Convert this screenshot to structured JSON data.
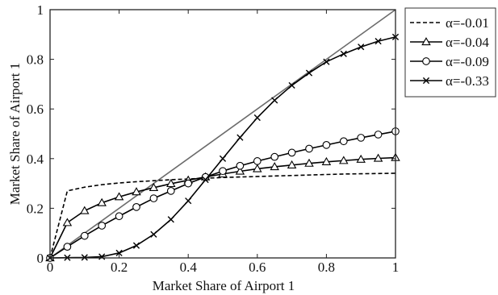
{
  "chart_data": {
    "type": "line",
    "title": "",
    "xlabel": "Market Share of Airport 1",
    "ylabel": "Market Share of Airport 1",
    "xlim": [
      0,
      1
    ],
    "ylim": [
      0,
      1
    ],
    "xticks": [
      "0",
      "0.2",
      "0.4",
      "0.6",
      "0.8",
      "1"
    ],
    "yticks": [
      "0",
      "0.2",
      "0.4",
      "0.6",
      "0.8",
      "1"
    ],
    "grid": false,
    "legend_position": "outside-top-right",
    "x": [
      0,
      0.05,
      0.1,
      0.15,
      0.2,
      0.25,
      0.3,
      0.35,
      0.4,
      0.45,
      0.5,
      0.55,
      0.6,
      0.65,
      0.7,
      0.75,
      0.8,
      0.85,
      0.9,
      0.95,
      1.0
    ],
    "reference_line": {
      "x": [
        0,
        1
      ],
      "y": [
        0,
        1
      ],
      "color": "#6b6b6b"
    },
    "series": [
      {
        "name": "α=-0.01",
        "marker": "none",
        "dash": "dashed",
        "color": "#000000",
        "values": [
          0,
          0.27,
          0.285,
          0.295,
          0.302,
          0.307,
          0.311,
          0.315,
          0.318,
          0.321,
          0.324,
          0.326,
          0.328,
          0.33,
          0.332,
          0.334,
          0.336,
          0.338,
          0.339,
          0.34,
          0.341
        ]
      },
      {
        "name": "α=-0.04",
        "marker": "triangle",
        "dash": "solid",
        "color": "#000000",
        "values": [
          0,
          0.142,
          0.19,
          0.222,
          0.246,
          0.266,
          0.283,
          0.299,
          0.313,
          0.326,
          0.338,
          0.349,
          0.359,
          0.367,
          0.374,
          0.381,
          0.387,
          0.392,
          0.397,
          0.401,
          0.404
        ]
      },
      {
        "name": "α=-0.09",
        "marker": "circle",
        "dash": "solid",
        "color": "#000000",
        "values": [
          0,
          0.045,
          0.089,
          0.13,
          0.168,
          0.205,
          0.24,
          0.27,
          0.3,
          0.326,
          0.35,
          0.371,
          0.39,
          0.407,
          0.424,
          0.44,
          0.455,
          0.47,
          0.484,
          0.497,
          0.51
        ]
      },
      {
        "name": "α=-0.33",
        "marker": "x",
        "dash": "solid",
        "color": "#000000",
        "values": [
          0,
          0.001,
          0.002,
          0.005,
          0.02,
          0.05,
          0.095,
          0.155,
          0.23,
          0.315,
          0.4,
          0.485,
          0.565,
          0.635,
          0.695,
          0.745,
          0.79,
          0.822,
          0.85,
          0.873,
          0.89
        ]
      }
    ]
  }
}
